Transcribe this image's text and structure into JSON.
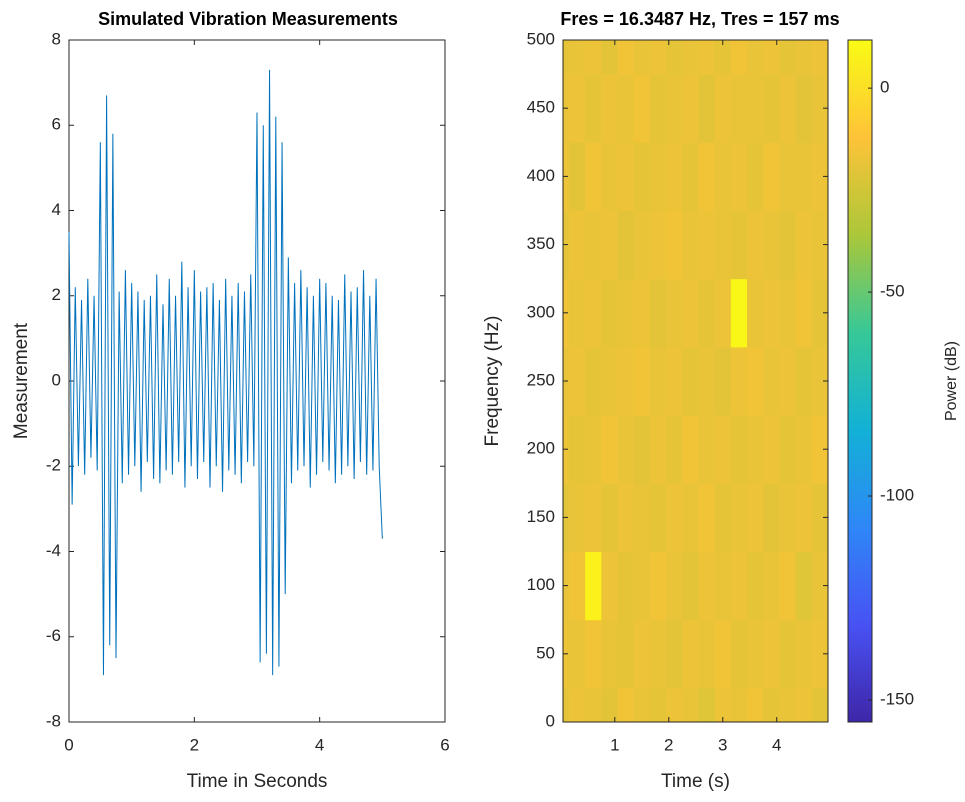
{
  "chart_data": [
    {
      "type": "line",
      "title": "Simulated Vibration Measurements",
      "xlabel": "Time in Seconds",
      "ylabel": "Measurement",
      "color": "#0072bd",
      "xlim": [
        0,
        6
      ],
      "xticks": [
        0,
        2,
        4,
        6
      ],
      "ylim": [
        -8,
        8
      ],
      "yticks": [
        -8,
        -6,
        -4,
        -2,
        0,
        2,
        4,
        6,
        8
      ],
      "x": [
        0,
        0.05,
        0.1,
        0.15,
        0.2,
        0.25,
        0.3,
        0.35,
        0.4,
        0.45,
        0.5,
        0.55,
        0.6,
        0.65,
        0.7,
        0.75,
        0.8,
        0.85,
        0.9,
        0.95,
        1,
        1.05,
        1.1,
        1.15,
        1.2,
        1.25,
        1.3,
        1.35,
        1.4,
        1.45,
        1.5,
        1.55,
        1.6,
        1.65,
        1.7,
        1.75,
        1.8,
        1.85,
        1.9,
        1.95,
        2,
        2.05,
        2.1,
        2.15,
        2.2,
        2.25,
        2.3,
        2.35,
        2.4,
        2.45,
        2.5,
        2.55,
        2.6,
        2.65,
        2.7,
        2.75,
        2.8,
        2.85,
        2.9,
        2.95,
        3,
        3.05,
        3.1,
        3.15,
        3.2,
        3.25,
        3.3,
        3.35,
        3.4,
        3.45,
        3.5,
        3.55,
        3.6,
        3.65,
        3.7,
        3.75,
        3.8,
        3.85,
        3.9,
        3.95,
        4,
        4.05,
        4.1,
        4.15,
        4.2,
        4.25,
        4.3,
        4.35,
        4.4,
        4.45,
        4.5,
        4.55,
        4.6,
        4.65,
        4.7,
        4.75,
        4.8,
        4.85,
        4.9,
        4.95,
        5
      ],
      "values": [
        3.5,
        -2.9,
        2.2,
        -2.0,
        1.9,
        -2.2,
        2.4,
        -1.8,
        2.0,
        -2.1,
        5.6,
        -6.9,
        6.7,
        -6.2,
        5.8,
        -6.5,
        2.1,
        -2.4,
        2.6,
        -2.2,
        2.3,
        -2.0,
        2.1,
        -2.6,
        1.9,
        -1.9,
        2.0,
        -2.3,
        2.5,
        -2.4,
        1.8,
        -2.1,
        2.4,
        -2.2,
        2.0,
        -1.9,
        2.8,
        -2.5,
        2.2,
        -2.0,
        2.6,
        -2.3,
        2.1,
        -1.9,
        2.2,
        -2.5,
        2.3,
        -2.0,
        1.9,
        -2.6,
        2.4,
        -2.1,
        2.0,
        -2.2,
        2.3,
        -2.4,
        2.1,
        -1.9,
        2.5,
        -2.0,
        6.3,
        -6.6,
        6.0,
        -6.4,
        7.3,
        -6.9,
        6.2,
        -6.7,
        5.6,
        -5.0,
        2.9,
        -2.4,
        2.3,
        -2.1,
        2.6,
        -2.0,
        2.2,
        -2.5,
        2.0,
        -2.2,
        2.4,
        -1.9,
        2.3,
        -2.1,
        2.0,
        -2.4,
        1.9,
        -2.2,
        2.5,
        -2.0,
        2.1,
        -2.3,
        2.2,
        -1.9,
        2.6,
        -2.2,
        2.0,
        -2.1,
        2.4,
        -2.0,
        -3.7
      ]
    },
    {
      "type": "heatmap",
      "title": "Fres = 16.3487 Hz, Tres = 157 ms",
      "xlabel": "Time (s)",
      "ylabel": "Frequency (Hz)",
      "colormap": "parula",
      "xlim": [
        0.04,
        4.95
      ],
      "xticks": [
        1,
        2,
        3,
        4
      ],
      "ylim": [
        0,
        500
      ],
      "yticks": [
        0,
        50,
        100,
        150,
        200,
        250,
        300,
        350,
        400,
        450,
        500
      ],
      "x": [
        0,
        0.3,
        0.6,
        0.9,
        1.2,
        1.5,
        1.8,
        2.1,
        2.4,
        2.7,
        3,
        3.3,
        3.6,
        3.9,
        4.2,
        4.5,
        4.8
      ],
      "y": [
        0,
        50,
        100,
        150,
        200,
        250,
        300,
        350,
        400,
        450,
        500
      ],
      "z": [
        [
          -19,
          -17,
          -18,
          -20,
          -16,
          -18,
          -19,
          -17,
          -18,
          -21,
          -17,
          -18,
          -16,
          -19,
          -18,
          -17,
          -20
        ],
        [
          -17,
          -18,
          -16,
          -18,
          -19,
          -17,
          -18,
          -20,
          -17,
          -18,
          -16,
          -19,
          -18,
          -17,
          -19,
          -18,
          -17
        ],
        [
          -18,
          -16,
          8,
          -17,
          -19,
          -18,
          -16,
          -18,
          -20,
          -17,
          -18,
          -17,
          -19,
          -18,
          -16,
          -21,
          -18
        ],
        [
          -20,
          -18,
          -17,
          -19,
          -17,
          -18,
          -19,
          -17,
          -18,
          -16,
          -19,
          -18,
          -17,
          -20,
          -18,
          -17,
          -19
        ],
        [
          -17,
          -19,
          -18,
          -16,
          -18,
          -20,
          -17,
          -19,
          -16,
          -18,
          -17,
          -19,
          -18,
          -17,
          -19,
          -18,
          -16
        ],
        [
          -18,
          -17,
          -19,
          -18,
          -17,
          -16,
          -18,
          -17,
          -19,
          -18,
          -20,
          -17,
          -16,
          -18,
          -17,
          -19,
          -18
        ],
        [
          -16,
          -18,
          -17,
          -19,
          -18,
          -17,
          -20,
          -18,
          -17,
          -19,
          -17,
          10,
          -18,
          -17,
          -18,
          -16,
          -19
        ],
        [
          -19,
          -17,
          -18,
          -17,
          -20,
          -18,
          -17,
          -16,
          -18,
          -17,
          -18,
          -19,
          -17,
          -18,
          -20,
          -17,
          -18
        ],
        [
          -17,
          -20,
          -16,
          -18,
          -17,
          -19,
          -18,
          -17,
          -19,
          -16,
          -18,
          -17,
          -19,
          -16,
          -18,
          -18,
          -17
        ],
        [
          -18,
          -17,
          -19,
          -17,
          -18,
          -16,
          -19,
          -18,
          -17,
          -20,
          -17,
          -18,
          -18,
          -19,
          -17,
          -20,
          -18
        ],
        [
          -19,
          -18,
          -17,
          -20,
          -16,
          -18,
          -17,
          -19,
          -18,
          -17,
          -19,
          -16,
          -18,
          -17,
          -19,
          -18,
          -17
        ]
      ],
      "colorbar": {
        "label": "Power (dB)",
        "lim": [
          -155.4,
          11.8
        ],
        "ticks": [
          -150,
          -100,
          -50,
          0
        ]
      }
    }
  ]
}
